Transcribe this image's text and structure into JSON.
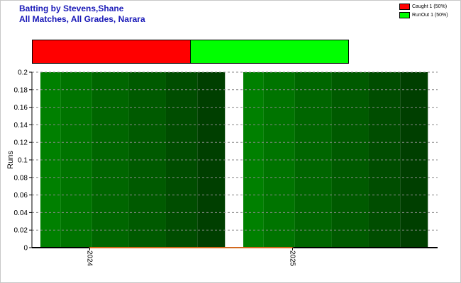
{
  "header": {
    "title_line1": "Batting by Stevens,Shane",
    "title_line2": "All Matches, All Grades, Narara"
  },
  "legend": [
    {
      "label": "Caught 1 (50%)",
      "color": "#ff0000"
    },
    {
      "label": "RunOut 1 (50%)",
      "color": "#00ff00"
    }
  ],
  "dismissals": [
    {
      "type": "Caught",
      "count": 1,
      "percent": 50,
      "color": "#ff0000"
    },
    {
      "type": "RunOut",
      "count": 1,
      "percent": 50,
      "color": "#00ff00"
    }
  ],
  "chart_data": {
    "type": "bar",
    "ylabel": "Runs",
    "xlabel": "",
    "categories": [
      "2024",
      "2025"
    ],
    "values": [
      0,
      0
    ],
    "ylim": [
      0,
      0.2
    ],
    "yticks": [
      "0",
      "0.02",
      "0.04",
      "0.06",
      "0.08",
      "0.1",
      "0.12",
      "0.14",
      "0.16",
      "0.18",
      "0.2"
    ],
    "grid": true,
    "bar_color": "#008000",
    "line_color": "#d2691e"
  }
}
